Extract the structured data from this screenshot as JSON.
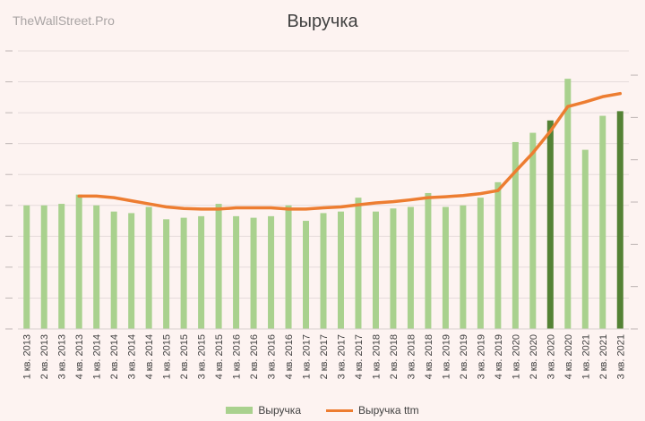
{
  "watermark": "TheWallStreet.Pro",
  "chart_data": {
    "type": "bar",
    "title": "Выручка",
    "categories": [
      "1 кв. 2013",
      "2 кв. 2013",
      "3 кв. 2013",
      "4 кв. 2013",
      "1 кв. 2014",
      "2 кв. 2014",
      "3 кв. 2014",
      "4 кв. 2014",
      "1 кв. 2015",
      "2 кв. 2015",
      "3 кв. 2015",
      "4 кв. 2015",
      "1 кв. 2016",
      "2 кв. 2016",
      "3 кв. 2016",
      "4 кв. 2016",
      "1 кв. 2017",
      "2 кв. 2017",
      "3 кв. 2017",
      "4 кв. 2017",
      "1 кв. 2018",
      "2 кв. 2018",
      "3 кв. 2018",
      "4 кв. 2018",
      "1 кв. 2019",
      "2 кв. 2019",
      "3 кв. 2019",
      "4 кв. 2019",
      "1 кв. 2020",
      "2 кв. 2020",
      "3 кв. 2020",
      "4 кв. 2020",
      "1 кв. 2021",
      "2 кв. 2021",
      "3 кв. 2021"
    ],
    "series": [
      {
        "name": "Выручка",
        "type": "bar",
        "color": "#a9d18e",
        "highlight_color": "#548235",
        "highlight_indices": [
          30,
          34
        ],
        "values": [
          4.0,
          4.0,
          4.05,
          4.35,
          4.0,
          3.8,
          3.75,
          3.95,
          3.55,
          3.6,
          3.65,
          4.05,
          3.65,
          3.6,
          3.65,
          4.0,
          3.5,
          3.75,
          3.8,
          4.25,
          3.8,
          3.9,
          3.95,
          4.4,
          3.95,
          4.0,
          4.25,
          4.75,
          6.05,
          6.35,
          6.75,
          8.1,
          5.8,
          6.9,
          7.05
        ]
      },
      {
        "name": "Выручка ttm",
        "type": "line",
        "color": "#ed7d31",
        "start_index": 3,
        "values": [
          null,
          null,
          null,
          4.3,
          4.3,
          4.25,
          4.15,
          4.05,
          3.95,
          3.9,
          3.88,
          3.88,
          3.92,
          3.92,
          3.92,
          3.88,
          3.88,
          3.92,
          3.95,
          4.02,
          4.08,
          4.12,
          4.18,
          4.25,
          4.28,
          4.32,
          4.38,
          4.48,
          5.1,
          5.7,
          6.4,
          7.2,
          7.35,
          7.52,
          7.62
        ]
      }
    ],
    "ylim": [
      0,
      9
    ],
    "y_tick_labels_visible": false,
    "grid": true,
    "legend": "bottom"
  }
}
